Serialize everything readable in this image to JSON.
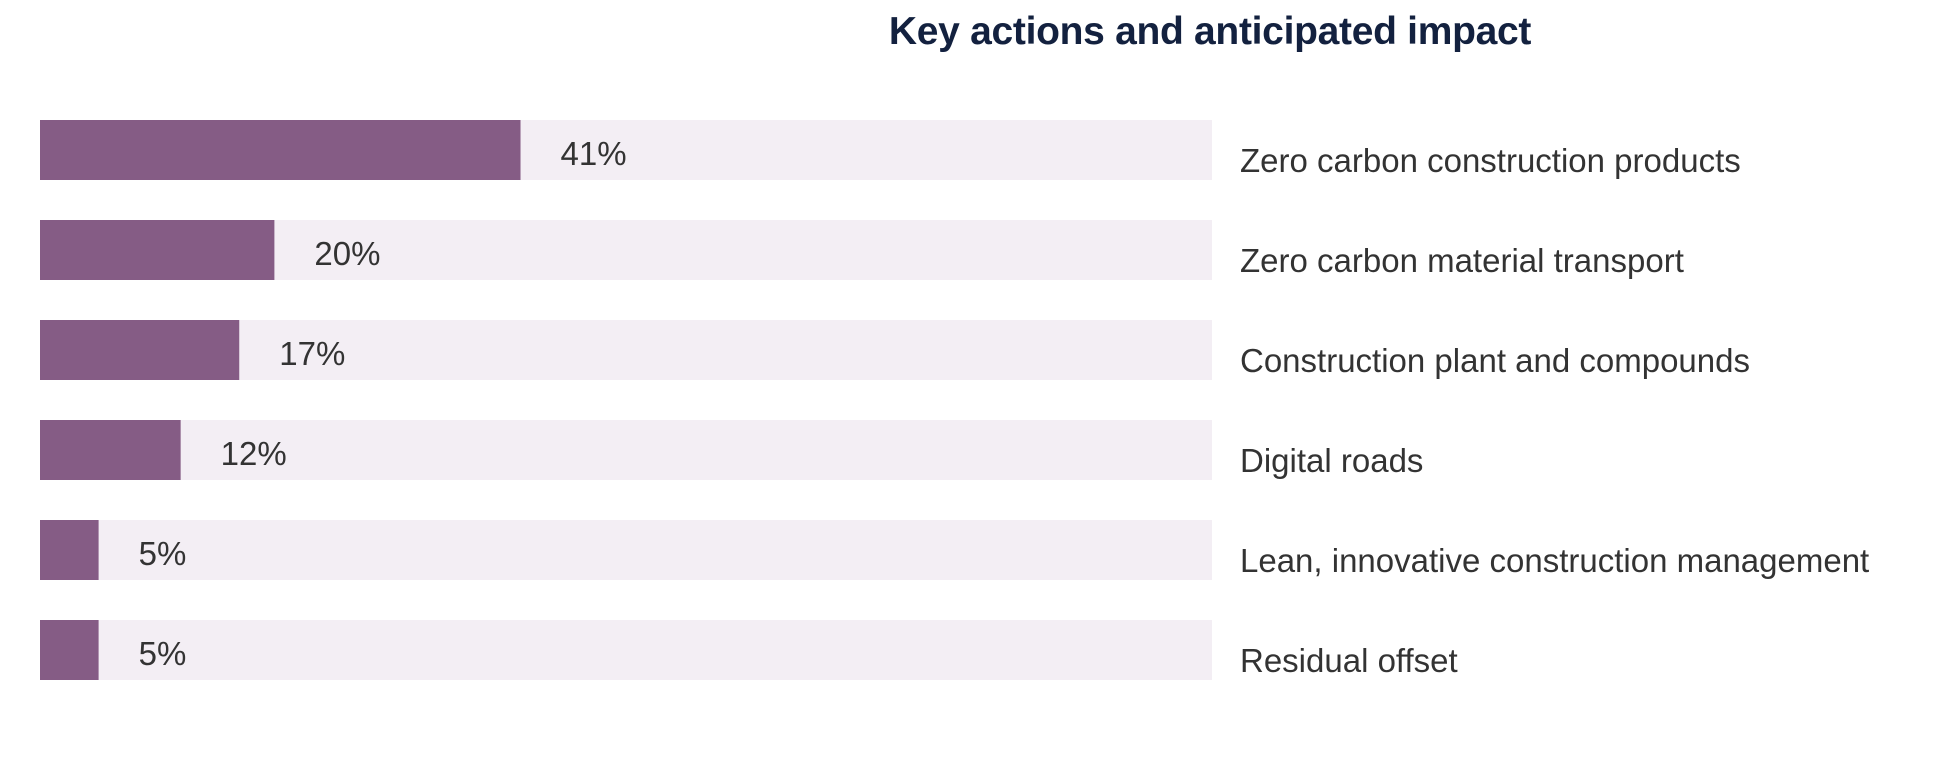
{
  "chart_data": {
    "type": "bar",
    "orientation": "horizontal",
    "title": "Key actions and anticipated impact",
    "categories": [
      "Zero carbon construction products",
      "Zero carbon material transport",
      "Construction plant and compounds",
      "Digital roads",
      "Lean, innovative construction management",
      "Residual offset"
    ],
    "values": [
      41,
      20,
      17,
      12,
      5,
      5
    ],
    "value_labels": [
      "41%",
      "20%",
      "17%",
      "12%",
      "5%",
      "5%"
    ],
    "xlim": [
      0,
      100
    ],
    "unit": "%",
    "grid": false,
    "legend": "none",
    "colors": {
      "bar": "#855c85",
      "track": "#f3eef4",
      "title": "#13213f",
      "text": "#333333"
    }
  }
}
